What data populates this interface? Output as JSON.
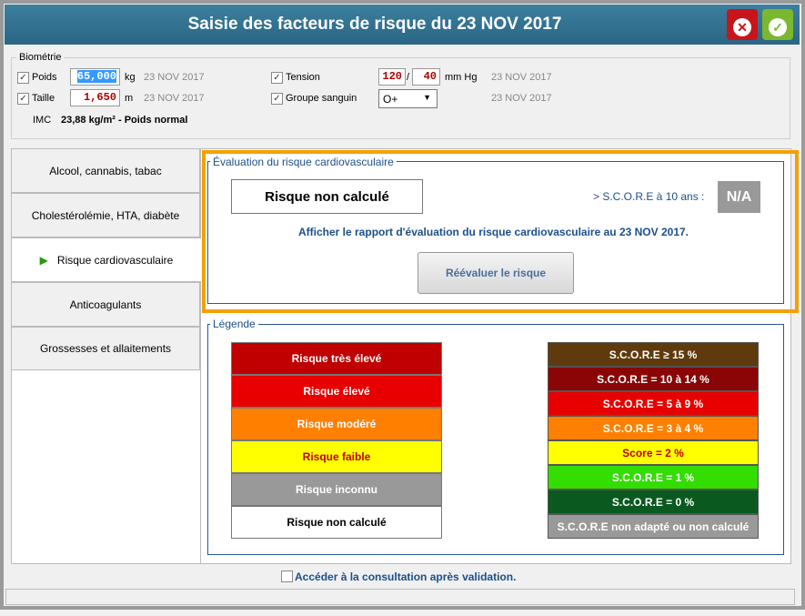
{
  "title": "Saisie des facteurs de risque du 23 NOV 2017",
  "buttons": {
    "cancel": "cancel-undo-icon",
    "validate": "validate-redo-icon"
  },
  "biometrie": {
    "label": "Biométrie",
    "poids": {
      "label": "Poids",
      "value": "65,000",
      "unit": "kg",
      "date": "23 NOV 2017",
      "checked": true
    },
    "taille": {
      "label": "Taille",
      "value": "1,650",
      "unit": "m",
      "date": "23 NOV 2017",
      "checked": true
    },
    "imc": {
      "label": "IMC",
      "value": "23,88 kg/m² - Poids normal"
    },
    "tension": {
      "label": "Tension",
      "systolic": "120",
      "sep": "/",
      "diastolic": "40",
      "unit": "mm Hg",
      "date": "23 NOV 2017",
      "checked": true
    },
    "groupe": {
      "label": "Groupe sanguin",
      "value": "O+",
      "date": "23 NOV 2017",
      "checked": true
    }
  },
  "tabs": [
    {
      "label": "Alcool, cannabis, tabac"
    },
    {
      "label": "Cholestérolémie, HTA, diabète"
    },
    {
      "label": "Risque cardiovasculaire",
      "selected": true
    },
    {
      "label": "Anticoagulants"
    },
    {
      "label": "Grossesses et allaitements"
    }
  ],
  "evaluation": {
    "label": "Évaluation du risque cardiovasculaire",
    "risk": "Risque non calculé",
    "score_label": "> S.C.O.R.E à 10 ans :",
    "score_value": "N/A",
    "link": "Afficher le rapport d'évaluation du risque cardiovasculaire au 23 NOV 2017.",
    "reevaluate": "Réévaluer le risque"
  },
  "legend": {
    "label": "Légende",
    "risks": [
      {
        "label": "Risque très élevé",
        "color": "#c00000",
        "text": "#ffffff"
      },
      {
        "label": "Risque élevé",
        "color": "#e80000",
        "text": "#ffffff"
      },
      {
        "label": "Risque modéré",
        "color": "#ff8000",
        "text": "#ffffff"
      },
      {
        "label": "Risque faible",
        "color": "#ffff00",
        "text": "#c00000"
      },
      {
        "label": "Risque inconnu",
        "color": "#999999",
        "text": "#ffffff"
      },
      {
        "label": "Risque non calculé",
        "color": "#ffffff",
        "text": "#000000"
      }
    ],
    "scores": [
      {
        "label": "S.C.O.R.E ≥ 15 %",
        "color": "#5e3a0c",
        "text": "#ffffff"
      },
      {
        "label": "S.C.O.R.E = 10 à 14 %",
        "color": "#8a0606",
        "text": "#ffffff"
      },
      {
        "label": "S.C.O.R.E = 5 à 9 %",
        "color": "#e80000",
        "text": "#ffffff"
      },
      {
        "label": "S.C.O.R.E = 3 à 4 %",
        "color": "#ff8000",
        "text": "#ffffff"
      },
      {
        "label": "Score = 2 %",
        "color": "#ffff00",
        "text": "#c00000"
      },
      {
        "label": "S.C.O.R.E = 1 %",
        "color": "#33dd00",
        "text": "#ffffff"
      },
      {
        "label": "S.C.O.R.E = 0 %",
        "color": "#0a5a20",
        "text": "#ffffff"
      },
      {
        "label": "S.C.O.R.E non adapté ou non calculé",
        "color": "#999999",
        "text": "#ffffff"
      }
    ]
  },
  "footer": {
    "consult": "Accéder à la consultation après validation.",
    "checked": false
  },
  "accent": "#f5a000"
}
